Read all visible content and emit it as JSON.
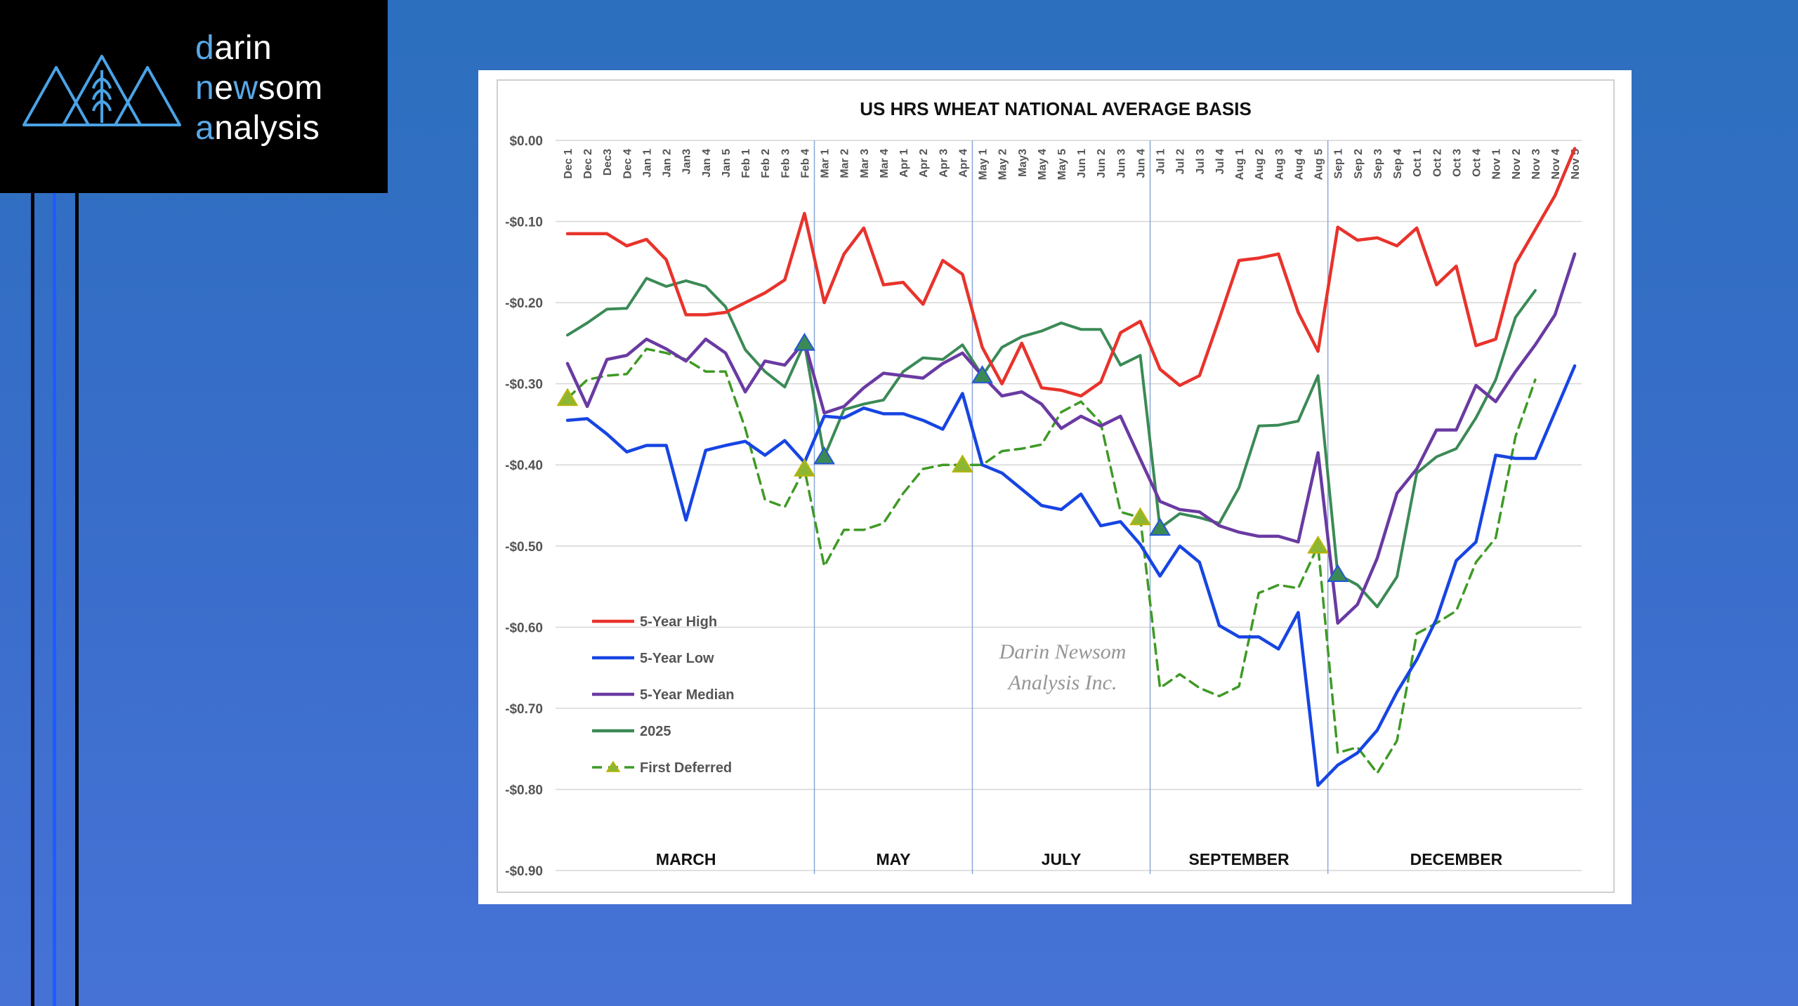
{
  "brand": {
    "line1_hl": "d",
    "line1_rest": "arin",
    "line2_hl": "n",
    "line2_mid": "e",
    "line2_hl2": "w",
    "line2_rest": "som",
    "line3_hl": "a",
    "line3_rest": "nalysis"
  },
  "colors": {
    "high": "#e8332c",
    "low": "#1745e3",
    "median": "#6a3aa2",
    "y2025": "#3b8a56",
    "first_deferred": "#3f9a26",
    "brand_accent": "#5aa8e6"
  },
  "chart_data": {
    "type": "line",
    "title": "US HRS WHEAT NATIONAL AVERAGE BASIS",
    "watermark": [
      "Darin Newsom",
      "Analysis Inc."
    ],
    "ylim": [
      -0.9,
      0.0
    ],
    "yticks": [
      0.0,
      -0.1,
      -0.2,
      -0.3,
      -0.4,
      -0.5,
      -0.6,
      -0.7,
      -0.8,
      -0.9
    ],
    "ytick_labels": [
      "$0.00",
      "-$0.10",
      "-$0.20",
      "-$0.30",
      "-$0.40",
      "-$0.50",
      "-$0.60",
      "-$0.70",
      "-$0.80",
      "-$0.90"
    ],
    "categories": [
      "Dec 1",
      "Dec 2",
      "Dec3",
      "Dec 4",
      "Jan 1",
      "Jan 2",
      "Jan3",
      "Jan 4",
      "Jan 5",
      "Feb 1",
      "Feb 2",
      "Feb 3",
      "Feb 4",
      "Mar 1",
      "Mar 2",
      "Mar 3",
      "Mar 4",
      "Apr 1",
      "Apr 2",
      "Apr 3",
      "Apr 4",
      "May 1",
      "May 2",
      "May3",
      "May 4",
      "May 5",
      "Jun 1",
      "Jun 2",
      "Jun 3",
      "Jun 4",
      "Jul 1",
      "Jul 2",
      "Jul 3",
      "Jul 4",
      "Aug 1",
      "Aug 2",
      "Aug 3",
      "Aug 4",
      "Aug 5",
      "Sep 1",
      "Sep 2",
      "Sep 3",
      "Sep 4",
      "Oct 1",
      "Oct 2",
      "Oct 3",
      "Oct 4",
      "Nov 1",
      "Nov 2",
      "Nov 3",
      "Nov 4",
      "Nov 5"
    ],
    "contract_dividers_after": [
      12,
      20,
      29,
      38
    ],
    "contracts": [
      {
        "label": "MARCH",
        "from": 0,
        "to": 12
      },
      {
        "label": "MAY",
        "from": 13,
        "to": 20
      },
      {
        "label": "JULY",
        "from": 21,
        "to": 29
      },
      {
        "label": "SEPTEMBER",
        "from": 30,
        "to": 38
      },
      {
        "label": "DECEMBER",
        "from": 39,
        "to": 51
      }
    ],
    "series": [
      {
        "name": "5-Year High",
        "key": "high",
        "values": [
          -0.115,
          -0.115,
          -0.115,
          -0.13,
          -0.122,
          -0.147,
          -0.215,
          -0.215,
          -0.212,
          -0.2,
          -0.188,
          -0.172,
          -0.09,
          -0.2,
          -0.14,
          -0.108,
          -0.178,
          -0.175,
          -0.202,
          -0.148,
          -0.165,
          -0.255,
          -0.3,
          -0.25,
          -0.305,
          -0.308,
          -0.315,
          -0.298,
          -0.237,
          -0.223,
          -0.282,
          -0.302,
          -0.29,
          -0.22,
          -0.148,
          -0.145,
          -0.14,
          -0.212,
          -0.26,
          -0.107,
          -0.123,
          -0.12,
          -0.13,
          -0.108,
          -0.178,
          -0.155,
          -0.253,
          -0.245,
          -0.152,
          -0.11,
          -0.068,
          -0.01
        ]
      },
      {
        "name": "5-Year Low",
        "key": "low",
        "values": [
          -0.345,
          -0.343,
          -0.362,
          -0.384,
          -0.376,
          -0.376,
          -0.468,
          -0.382,
          -0.376,
          -0.371,
          -0.388,
          -0.37,
          -0.397,
          -0.34,
          -0.342,
          -0.33,
          -0.337,
          -0.337,
          -0.345,
          -0.356,
          -0.312,
          -0.4,
          -0.41,
          -0.43,
          -0.45,
          -0.455,
          -0.436,
          -0.475,
          -0.47,
          -0.498,
          -0.537,
          -0.5,
          -0.52,
          -0.598,
          -0.612,
          -0.612,
          -0.627,
          -0.582,
          -0.795,
          -0.77,
          -0.755,
          -0.727,
          -0.68,
          -0.64,
          -0.59,
          -0.518,
          -0.495,
          -0.388,
          -0.392,
          -0.392,
          -0.335,
          -0.278
        ]
      },
      {
        "name": "5-Year Median",
        "key": "median",
        "values": [
          -0.275,
          -0.328,
          -0.27,
          -0.265,
          -0.245,
          -0.257,
          -0.272,
          -0.245,
          -0.262,
          -0.31,
          -0.272,
          -0.277,
          -0.248,
          -0.336,
          -0.328,
          -0.305,
          -0.287,
          -0.29,
          -0.293,
          -0.275,
          -0.262,
          -0.29,
          -0.315,
          -0.31,
          -0.325,
          -0.355,
          -0.34,
          -0.352,
          -0.34,
          -0.393,
          -0.445,
          -0.455,
          -0.458,
          -0.475,
          -0.483,
          -0.488,
          -0.488,
          -0.495,
          -0.385,
          -0.595,
          -0.572,
          -0.515,
          -0.435,
          -0.405,
          -0.357,
          -0.357,
          -0.302,
          -0.322,
          -0.285,
          -0.252,
          -0.215,
          -0.14
        ]
      },
      {
        "name": "2025",
        "key": "y2025",
        "values": [
          -0.24,
          -0.225,
          -0.208,
          -0.207,
          -0.17,
          -0.18,
          -0.173,
          -0.18,
          -0.205,
          -0.258,
          -0.285,
          -0.304,
          -0.25,
          -0.39,
          -0.332,
          -0.325,
          -0.32,
          -0.285,
          -0.268,
          -0.27,
          -0.252,
          -0.29,
          -0.255,
          -0.242,
          -0.235,
          -0.225,
          -0.233,
          -0.233,
          -0.277,
          -0.265,
          -0.478,
          -0.46,
          -0.465,
          -0.472,
          -0.428,
          -0.352,
          -0.351,
          -0.346,
          -0.29,
          -0.535,
          -0.548,
          -0.575,
          -0.538,
          -0.41,
          -0.39,
          -0.38,
          -0.342,
          -0.295,
          -0.218,
          -0.185,
          null,
          null
        ]
      },
      {
        "name": "First Deferred",
        "key": "first_deferred",
        "values": [
          -0.318,
          -0.295,
          -0.29,
          -0.288,
          -0.257,
          -0.262,
          -0.27,
          -0.285,
          -0.285,
          -0.355,
          -0.443,
          -0.452,
          -0.405,
          -0.525,
          -0.48,
          -0.48,
          -0.472,
          -0.435,
          -0.405,
          -0.4,
          -0.4,
          -0.4,
          -0.383,
          -0.38,
          -0.375,
          -0.335,
          -0.322,
          -0.348,
          -0.458,
          -0.465,
          -0.675,
          -0.658,
          -0.675,
          -0.685,
          -0.673,
          -0.558,
          -0.548,
          -0.552,
          -0.5,
          -0.755,
          -0.748,
          -0.78,
          -0.74,
          -0.608,
          -0.595,
          -0.58,
          -0.52,
          -0.49,
          -0.365,
          -0.295,
          null,
          null
        ]
      }
    ],
    "markers": {
      "first_deferred_index": [
        0,
        12,
        20,
        29,
        38
      ],
      "y2025_index": [
        12,
        13,
        21,
        30,
        39
      ]
    },
    "legend": [
      {
        "label": "5-Year High",
        "key": "high"
      },
      {
        "label": "5-Year Low",
        "key": "low"
      },
      {
        "label": "5-Year Median",
        "key": "median"
      },
      {
        "label": "2025",
        "key": "y2025"
      },
      {
        "label": "First Deferred",
        "key": "first_deferred"
      }
    ]
  }
}
